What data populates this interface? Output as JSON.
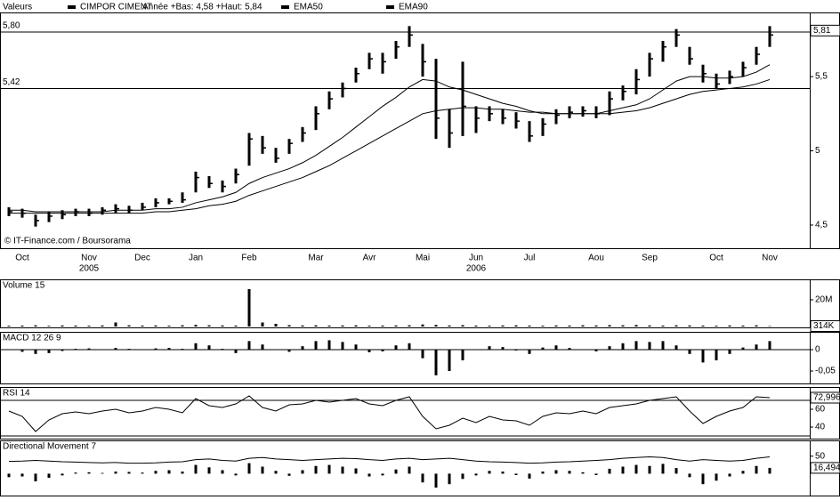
{
  "chart_data": [
    {
      "type": "ohlc",
      "legend_label": "Valeurs",
      "title": "CIMPOR CIMENT",
      "subtitle": "Année +Bas: 4,58 +Haut: 5,84",
      "source": "© IT-Finance.com / Boursorama",
      "color": "#000000",
      "categories": [
        null,
        "Oct",
        null,
        null,
        null,
        null,
        "Nov",
        null,
        null,
        null,
        "Dec",
        null,
        null,
        null,
        "Jan",
        null,
        null,
        null,
        "Feb",
        null,
        null,
        null,
        null,
        "Mar",
        null,
        null,
        null,
        "Avr",
        null,
        null,
        null,
        "Mai",
        null,
        null,
        null,
        "Jun",
        null,
        null,
        null,
        "Jul",
        null,
        null,
        null,
        null,
        "Aou",
        null,
        null,
        null,
        "Sep",
        null,
        null,
        null,
        null,
        "Oct",
        null,
        null,
        null,
        "Nov"
      ],
      "years": [
        null,
        null,
        null,
        null,
        null,
        null,
        "2005",
        null,
        null,
        null,
        null,
        null,
        null,
        null,
        null,
        null,
        null,
        null,
        null,
        null,
        null,
        null,
        null,
        null,
        null,
        null,
        null,
        null,
        null,
        null,
        null,
        null,
        null,
        null,
        null,
        "2006",
        null,
        null,
        null,
        null,
        null,
        null,
        null,
        null,
        null,
        null,
        null,
        null,
        null,
        null,
        null,
        null,
        null,
        null,
        null,
        null,
        null,
        null
      ],
      "high": [
        4.62,
        4.61,
        4.57,
        4.59,
        4.6,
        4.61,
        4.61,
        4.62,
        4.64,
        4.63,
        4.65,
        4.68,
        4.68,
        4.72,
        4.86,
        4.83,
        4.8,
        4.88,
        5.12,
        5.1,
        5.02,
        5.08,
        5.16,
        5.3,
        5.4,
        5.46,
        5.56,
        5.66,
        5.66,
        5.74,
        5.84,
        5.72,
        5.62,
        5.28,
        5.6,
        5.3,
        5.3,
        5.28,
        5.26,
        5.2,
        5.22,
        5.28,
        5.3,
        5.3,
        5.3,
        5.4,
        5.44,
        5.55,
        5.66,
        5.74,
        5.82,
        5.7,
        5.58,
        5.52,
        5.54,
        5.6,
        5.7,
        5.84
      ],
      "low": [
        4.56,
        4.55,
        4.49,
        4.52,
        4.54,
        4.56,
        4.56,
        4.57,
        4.58,
        4.58,
        4.6,
        4.62,
        4.64,
        4.65,
        4.72,
        4.75,
        4.72,
        4.78,
        4.9,
        4.98,
        4.92,
        4.98,
        5.06,
        5.14,
        5.28,
        5.36,
        5.46,
        5.55,
        5.52,
        5.62,
        5.7,
        5.5,
        5.08,
        5.02,
        5.1,
        5.12,
        5.2,
        5.18,
        5.15,
        5.06,
        5.1,
        5.18,
        5.22,
        5.23,
        5.22,
        5.24,
        5.34,
        5.38,
        5.5,
        5.6,
        5.7,
        5.58,
        5.46,
        5.42,
        5.45,
        5.5,
        5.58,
        5.7
      ],
      "close": [
        4.59,
        4.58,
        4.53,
        4.56,
        4.57,
        4.59,
        4.58,
        4.6,
        4.61,
        4.6,
        4.62,
        4.65,
        4.66,
        4.67,
        4.82,
        4.78,
        4.76,
        4.84,
        5.08,
        5.02,
        4.95,
        5.05,
        5.12,
        5.25,
        5.35,
        5.42,
        5.52,
        5.62,
        5.6,
        5.7,
        5.78,
        5.6,
        5.22,
        5.12,
        5.3,
        5.22,
        5.25,
        5.22,
        5.2,
        5.1,
        5.18,
        5.24,
        5.26,
        5.27,
        5.25,
        5.35,
        5.4,
        5.48,
        5.62,
        5.7,
        5.78,
        5.62,
        5.52,
        5.45,
        5.5,
        5.56,
        5.65,
        5.78
      ],
      "series": [
        {
          "name": "EMA50",
          "color": "#000000",
          "values": [
            4.6,
            4.6,
            4.59,
            4.59,
            4.59,
            4.59,
            4.59,
            4.59,
            4.6,
            4.6,
            4.6,
            4.61,
            4.61,
            4.62,
            4.65,
            4.67,
            4.69,
            4.72,
            4.78,
            4.82,
            4.85,
            4.88,
            4.92,
            4.97,
            5.03,
            5.09,
            5.16,
            5.23,
            5.3,
            5.36,
            5.43,
            5.48,
            5.47,
            5.43,
            5.41,
            5.38,
            5.35,
            5.32,
            5.3,
            5.27,
            5.25,
            5.25,
            5.25,
            5.25,
            5.25,
            5.27,
            5.29,
            5.31,
            5.35,
            5.41,
            5.47,
            5.5,
            5.5,
            5.49,
            5.49,
            5.5,
            5.53,
            5.58
          ]
        },
        {
          "name": "EMA90",
          "color": "#000000",
          "values": [
            4.58,
            4.58,
            4.58,
            4.58,
            4.58,
            4.58,
            4.58,
            4.58,
            4.58,
            4.58,
            4.58,
            4.59,
            4.59,
            4.6,
            4.61,
            4.63,
            4.64,
            4.66,
            4.7,
            4.73,
            4.76,
            4.79,
            4.82,
            4.86,
            4.9,
            4.95,
            5.0,
            5.05,
            5.1,
            5.15,
            5.2,
            5.25,
            5.27,
            5.28,
            5.29,
            5.29,
            5.28,
            5.28,
            5.27,
            5.26,
            5.26,
            5.25,
            5.25,
            5.25,
            5.25,
            5.25,
            5.26,
            5.27,
            5.29,
            5.32,
            5.35,
            5.38,
            5.4,
            5.41,
            5.42,
            5.43,
            5.45,
            5.48
          ]
        }
      ],
      "reference_lines": [
        {
          "value": 5.8,
          "label": "5,80"
        },
        {
          "value": 5.42,
          "label": "5,42"
        }
      ],
      "current": {
        "value": 5.81,
        "label": "5,81"
      },
      "ylim": [
        4.35,
        5.92
      ],
      "yticks": [
        {
          "value": 4.5,
          "label": "4,5"
        },
        5,
        {
          "value": 5.5,
          "label": "5,5"
        }
      ]
    },
    {
      "type": "bar",
      "title": "Volume 15",
      "color": "#000000",
      "values": [
        600000,
        700000,
        900000,
        500000,
        800000,
        700000,
        600000,
        800000,
        3000000,
        900000,
        700000,
        800000,
        600000,
        900000,
        1200000,
        900000,
        800000,
        700000,
        28000000,
        3000000,
        2000000,
        1000000,
        800000,
        900000,
        700000,
        800000,
        900000,
        600000,
        700000,
        800000,
        900000,
        1500000,
        1200000,
        800000,
        1000000,
        700000,
        600000,
        800000,
        900000,
        700000,
        600000,
        800000,
        700000,
        900000,
        800000,
        1000000,
        900000,
        1100000,
        800000,
        700000,
        900000,
        800000,
        700000,
        600000,
        800000,
        700000,
        900000,
        314000
      ],
      "current": {
        "value": 314000,
        "label": "314K"
      },
      "ylim": [
        0,
        34000000
      ],
      "yticks": [
        {
          "value": 20000000,
          "label": "20M"
        }
      ]
    },
    {
      "type": "bar",
      "title": "MACD 12 26 9",
      "color": "#000000",
      "values": [
        0.0,
        -0.005,
        -0.01,
        -0.008,
        -0.003,
        0.002,
        0.003,
        0.001,
        0.004,
        0.002,
        0.001,
        0.003,
        0.004,
        0.002,
        0.015,
        0.01,
        0.002,
        -0.008,
        0.02,
        0.012,
        0.0,
        -0.005,
        0.008,
        0.02,
        0.022,
        0.018,
        0.012,
        -0.006,
        -0.004,
        0.01,
        0.015,
        -0.02,
        -0.06,
        -0.05,
        -0.025,
        0.0,
        0.008,
        0.006,
        -0.002,
        -0.01,
        0.005,
        0.01,
        0.004,
        0.0,
        -0.004,
        0.008,
        0.015,
        0.02,
        0.018,
        0.02,
        0.01,
        -0.01,
        -0.03,
        -0.025,
        -0.01,
        0.005,
        0.012,
        0.02
      ],
      "ylim": [
        -0.077,
        0.0375
      ],
      "yticks": [
        0,
        {
          "value": -0.05,
          "label": "-0,05"
        }
      ]
    },
    {
      "type": "line",
      "title": "RSI 14",
      "color": "#000000",
      "values": [
        58,
        52,
        35,
        48,
        55,
        57,
        55,
        58,
        60,
        56,
        58,
        62,
        60,
        56,
        72,
        64,
        62,
        66,
        75,
        62,
        58,
        65,
        66,
        70,
        68,
        70,
        72,
        66,
        64,
        70,
        74,
        52,
        38,
        42,
        50,
        45,
        52,
        48,
        47,
        42,
        52,
        56,
        55,
        58,
        55,
        62,
        64,
        66,
        70,
        72,
        74,
        58,
        44,
        52,
        58,
        62,
        74,
        72.996
      ],
      "levels": [
        70,
        30
      ],
      "current": {
        "value": 72.996,
        "label": "72,996"
      },
      "ylim": [
        28,
        83
      ],
      "yticks": [
        60,
        40
      ]
    },
    {
      "type": "line",
      "title": "Directional Movement 7",
      "color": "#000000",
      "values": [
        35,
        36,
        38,
        36,
        34,
        33,
        32,
        31,
        32,
        30,
        30,
        31,
        33,
        34,
        40,
        42,
        38,
        36,
        44,
        46,
        42,
        40,
        38,
        40,
        42,
        44,
        43,
        40,
        38,
        42,
        44,
        40,
        42,
        44,
        40,
        36,
        34,
        33,
        32,
        30,
        31,
        33,
        34,
        36,
        38,
        40,
        44,
        46,
        48,
        46,
        40,
        36,
        40,
        38,
        36,
        38,
        44,
        48
      ],
      "histogram": [
        -10,
        -8,
        -22,
        -12,
        -5,
        3,
        4,
        2,
        6,
        5,
        3,
        8,
        10,
        6,
        25,
        18,
        10,
        -5,
        30,
        20,
        8,
        -6,
        10,
        22,
        25,
        20,
        15,
        -8,
        -5,
        12,
        20,
        -25,
        -40,
        -30,
        -15,
        -5,
        8,
        6,
        -4,
        -14,
        6,
        10,
        8,
        4,
        -4,
        14,
        20,
        25,
        22,
        28,
        16,
        -10,
        -30,
        -20,
        -8,
        8,
        22,
        16.494
      ],
      "current": {
        "value": 16.494,
        "label": "16,494"
      },
      "ylim": [
        -60,
        90
      ],
      "yticks": [
        50
      ]
    }
  ]
}
